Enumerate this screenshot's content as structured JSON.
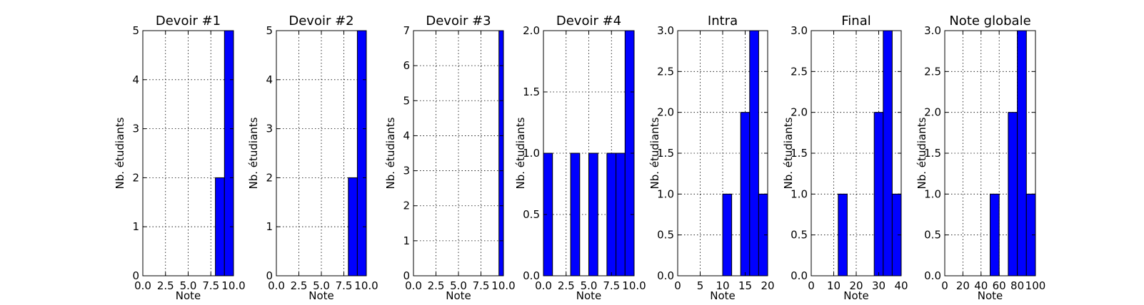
{
  "chart_data": [
    {
      "type": "bar",
      "title": "Devoir #1",
      "xlabel": "Note",
      "ylabel": "Nb. étudiants",
      "xlim": [
        0,
        10
      ],
      "ylim": [
        0,
        5
      ],
      "xticks": [
        "0.0",
        "2.5",
        "5.0",
        "7.5",
        "10.0"
      ],
      "xtick_values": [
        0,
        2.5,
        5,
        7.5,
        10
      ],
      "yticks": [
        "0",
        "1",
        "2",
        "3",
        "4",
        "5"
      ],
      "ytick_values": [
        0,
        1,
        2,
        3,
        4,
        5
      ],
      "grid": true,
      "bins": [
        [
          8,
          9,
          2
        ],
        [
          9,
          10,
          5
        ]
      ]
    },
    {
      "type": "bar",
      "title": "Devoir #2",
      "xlabel": "Note",
      "ylabel": "Nb. étudiants",
      "xlim": [
        0,
        10
      ],
      "ylim": [
        0,
        5
      ],
      "xticks": [
        "0.0",
        "2.5",
        "5.0",
        "7.5",
        "10.0"
      ],
      "xtick_values": [
        0,
        2.5,
        5,
        7.5,
        10
      ],
      "yticks": [
        "0",
        "1",
        "2",
        "3",
        "4",
        "5"
      ],
      "ytick_values": [
        0,
        1,
        2,
        3,
        4,
        5
      ],
      "grid": true,
      "bins": [
        [
          8,
          9,
          2
        ],
        [
          9,
          10,
          5
        ]
      ]
    },
    {
      "type": "bar",
      "title": "Devoir #3",
      "xlabel": "Note",
      "ylabel": "Nb. étudiants",
      "xlim": [
        0,
        10
      ],
      "ylim": [
        0,
        7
      ],
      "xticks": [
        "0.0",
        "2.5",
        "5.0",
        "7.5",
        "10.0"
      ],
      "xtick_values": [
        0,
        2.5,
        5,
        7.5,
        10
      ],
      "yticks": [
        "0",
        "1",
        "2",
        "3",
        "4",
        "5",
        "6",
        "7"
      ],
      "ytick_values": [
        0,
        1,
        2,
        3,
        4,
        5,
        6,
        7
      ],
      "grid": true,
      "bins": [
        [
          9.5,
          10,
          7
        ]
      ]
    },
    {
      "type": "bar",
      "title": "Devoir #4",
      "xlabel": "Note",
      "ylabel": "Nb. étudiants",
      "xlim": [
        0,
        10
      ],
      "ylim": [
        0,
        2
      ],
      "xticks": [
        "0.0",
        "2.5",
        "5.0",
        "7.5",
        "10.0"
      ],
      "xtick_values": [
        0,
        2.5,
        5,
        7.5,
        10
      ],
      "yticks": [
        "0.0",
        "0.5",
        "1.0",
        "1.5",
        "2.0"
      ],
      "ytick_values": [
        0,
        0.5,
        1,
        1.5,
        2
      ],
      "grid": true,
      "bins": [
        [
          0,
          1,
          1
        ],
        [
          3,
          4,
          1
        ],
        [
          5,
          6,
          1
        ],
        [
          7,
          8,
          1
        ],
        [
          8,
          9,
          1
        ],
        [
          9,
          10,
          2
        ]
      ]
    },
    {
      "type": "bar",
      "title": "Intra",
      "xlabel": "Note",
      "ylabel": "Nb. étudiants",
      "xlim": [
        0,
        20
      ],
      "ylim": [
        0,
        3
      ],
      "xticks": [
        "0",
        "5",
        "10",
        "15",
        "20"
      ],
      "xtick_values": [
        0,
        5,
        10,
        15,
        20
      ],
      "yticks": [
        "0.0",
        "0.5",
        "1.0",
        "1.5",
        "2.0",
        "2.5",
        "3.0"
      ],
      "ytick_values": [
        0,
        0.5,
        1,
        1.5,
        2,
        2.5,
        3
      ],
      "grid": true,
      "bins": [
        [
          10,
          12,
          1
        ],
        [
          14,
          16,
          2
        ],
        [
          16,
          18,
          3
        ],
        [
          18,
          20,
          1
        ]
      ]
    },
    {
      "type": "bar",
      "title": "Final",
      "xlabel": "Note",
      "ylabel": "Nb. étudiants",
      "xlim": [
        0,
        40
      ],
      "ylim": [
        0,
        3
      ],
      "xticks": [
        "0",
        "10",
        "20",
        "30",
        "40"
      ],
      "xtick_values": [
        0,
        10,
        20,
        30,
        40
      ],
      "yticks": [
        "0.0",
        "0.5",
        "1.0",
        "1.5",
        "2.0",
        "2.5",
        "3.0"
      ],
      "ytick_values": [
        0,
        0.5,
        1,
        1.5,
        2,
        2.5,
        3
      ],
      "grid": true,
      "bins": [
        [
          12,
          16,
          1
        ],
        [
          28,
          32,
          2
        ],
        [
          32,
          36,
          3
        ],
        [
          36,
          40,
          1
        ]
      ]
    },
    {
      "type": "bar",
      "title": "Note globale",
      "xlabel": "Note",
      "ylabel": "Nb. étudiants",
      "xlim": [
        0,
        100
      ],
      "ylim": [
        0,
        3
      ],
      "xticks": [
        "0",
        "20",
        "40",
        "60",
        "80",
        "100"
      ],
      "xtick_values": [
        0,
        20,
        40,
        60,
        80,
        100
      ],
      "yticks": [
        "0.0",
        "0.5",
        "1.0",
        "1.5",
        "2.0",
        "2.5",
        "3.0"
      ],
      "ytick_values": [
        0,
        0.5,
        1,
        1.5,
        2,
        2.5,
        3
      ],
      "grid": true,
      "bins": [
        [
          50,
          60,
          1
        ],
        [
          70,
          80,
          2
        ],
        [
          80,
          90,
          3
        ],
        [
          90,
          100,
          1
        ]
      ]
    }
  ]
}
